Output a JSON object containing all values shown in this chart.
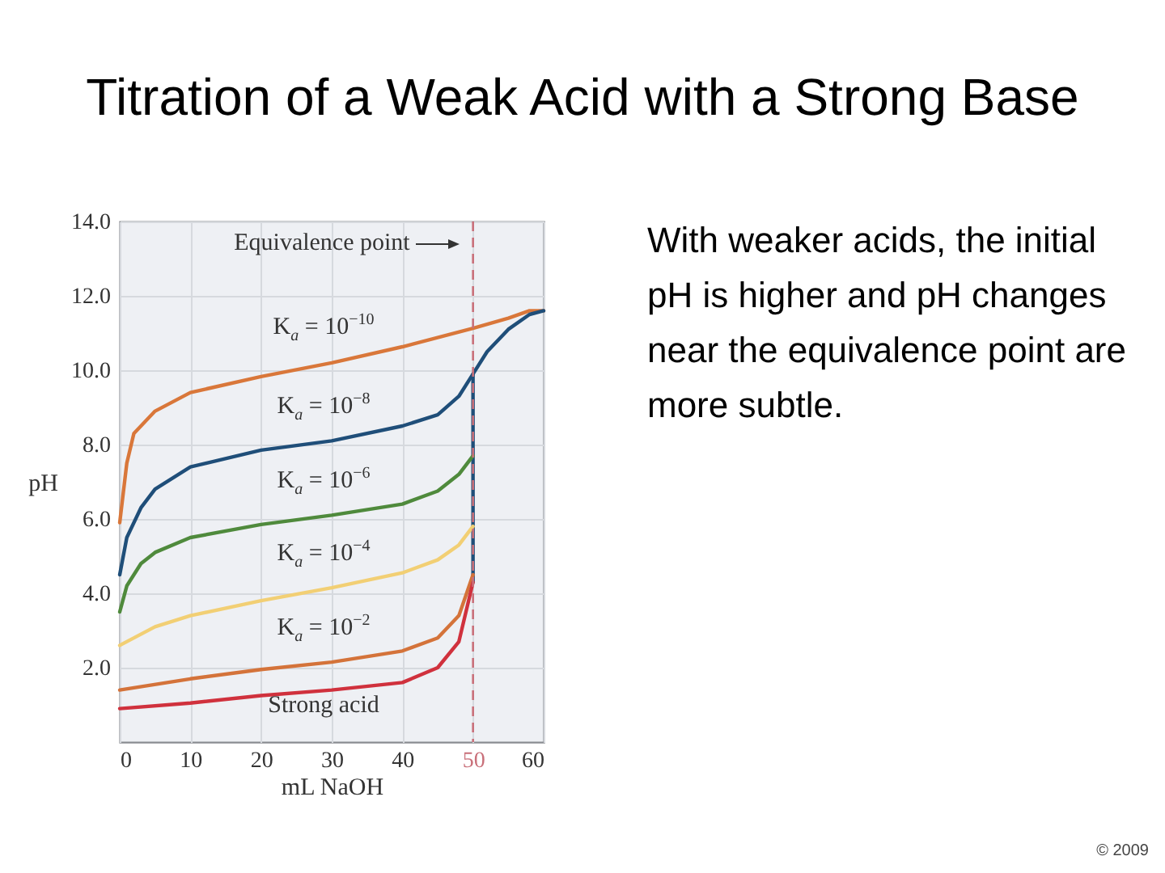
{
  "chart_data": {
    "type": "line",
    "title": "Titration of a Weak Acid with a Strong Base",
    "xlabel": "mL NaOH",
    "ylabel": "pH",
    "xlim": [
      0,
      60
    ],
    "xticks": [
      0,
      10,
      20,
      30,
      40,
      50,
      60
    ],
    "ylim": [
      0,
      14
    ],
    "yticks": [
      {
        "value": 2,
        "label": "2.0"
      },
      {
        "value": 4,
        "label": "4.0"
      },
      {
        "value": 6,
        "label": "6.0"
      },
      {
        "value": 8,
        "label": "8.0"
      },
      {
        "value": 10,
        "label": "10.0"
      },
      {
        "value": 12,
        "label": "12.0"
      },
      {
        "value": 14,
        "label": "14.0"
      }
    ],
    "grid": true,
    "legend": false,
    "line_style": "solid",
    "marker": "none",
    "series": [
      {
        "name": "K$_{a}$ = 10$^{−10}$",
        "color": "#d9773a",
        "x": [
          0,
          1,
          2,
          5,
          10,
          20,
          30,
          40,
          50,
          55,
          58,
          60
        ],
        "values": [
          5.9,
          7.5,
          8.3,
          8.9,
          9.4,
          9.83,
          10.2,
          10.63,
          11.13,
          11.4,
          11.6,
          11.6
        ]
      },
      {
        "name": "K$_{a}$ = 10$^{−8}$",
        "color": "#1f4e79",
        "x": [
          0,
          1,
          3,
          5,
          10,
          20,
          30,
          40,
          45,
          48,
          50,
          52,
          55,
          58,
          60
        ],
        "values": [
          4.5,
          5.5,
          6.3,
          6.8,
          7.4,
          7.85,
          8.1,
          8.5,
          8.8,
          9.3,
          9.9,
          10.5,
          11.1,
          11.5,
          11.6
        ]
      },
      {
        "color": "#1f4e79",
        "x": [
          50,
          50
        ],
        "values": [
          4.3,
          9.9
        ]
      },
      {
        "name": "K$_{a}$ = 10$^{−6}$",
        "color": "#4f8a3c",
        "x": [
          0,
          1,
          3,
          5,
          10,
          20,
          30,
          40,
          45,
          48,
          50
        ],
        "values": [
          3.5,
          4.2,
          4.8,
          5.1,
          5.5,
          5.85,
          6.1,
          6.4,
          6.75,
          7.2,
          7.7
        ]
      },
      {
        "name": "K$_{a}$ = 10$^{−4}$",
        "color": "#f2cf74",
        "x": [
          0,
          5,
          10,
          20,
          30,
          40,
          45,
          48,
          50
        ],
        "values": [
          2.6,
          3.1,
          3.4,
          3.8,
          4.15,
          4.55,
          4.9,
          5.3,
          5.8
        ]
      },
      {
        "name": "K$_{a}$ = 10$^{−2}$",
        "color": "#d4733a",
        "x": [
          0,
          10,
          20,
          30,
          40,
          45,
          48,
          50
        ],
        "values": [
          1.4,
          1.7,
          1.95,
          2.15,
          2.45,
          2.8,
          3.4,
          4.5
        ]
      },
      {
        "name": "Strong acid",
        "color": "#d0313d",
        "x": [
          0,
          10,
          20,
          30,
          40,
          45,
          48,
          50
        ],
        "values": [
          0.9,
          1.05,
          1.25,
          1.4,
          1.6,
          2.0,
          2.7,
          4.3
        ]
      }
    ],
    "ref_lines": [
      {
        "axis": "x",
        "value": 50,
        "label": "Equivalence point",
        "color": "#c9707a",
        "line_style": "dashed"
      }
    ],
    "annotations": [
      "With weaker acids, the initial pH is higher and pH changes near the equivalence point are more subtle.",
      "© 2009"
    ]
  }
}
